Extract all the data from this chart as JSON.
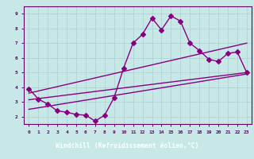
{
  "xlabel": "Windchill (Refroidissement éolien,°C)",
  "xlim": [
    -0.5,
    23.5
  ],
  "ylim": [
    1.5,
    9.5
  ],
  "xticks": [
    0,
    1,
    2,
    3,
    4,
    5,
    6,
    7,
    8,
    9,
    10,
    11,
    12,
    13,
    14,
    15,
    16,
    17,
    18,
    19,
    20,
    21,
    22,
    23
  ],
  "yticks": [
    2,
    3,
    4,
    5,
    6,
    7,
    8,
    9
  ],
  "bg_color": "#c8e8e8",
  "line_color": "#880080",
  "line1_x": [
    0,
    1,
    2,
    3,
    4,
    5,
    6,
    7,
    8,
    9,
    10,
    11,
    12,
    13,
    14,
    15,
    16,
    17,
    18,
    19,
    20,
    21,
    22,
    23
  ],
  "line1_y": [
    3.9,
    3.2,
    2.85,
    2.4,
    2.3,
    2.15,
    2.1,
    1.7,
    2.1,
    3.3,
    5.3,
    7.0,
    7.6,
    8.7,
    7.9,
    8.85,
    8.5,
    7.0,
    6.5,
    5.9,
    5.75,
    6.3,
    6.4,
    5.0
  ],
  "trend1_x": [
    0,
    23
  ],
  "trend1_y": [
    3.15,
    5.0
  ],
  "trend2_x": [
    0,
    23
  ],
  "trend2_y": [
    3.6,
    7.0
  ],
  "trend3_x": [
    0,
    23
  ],
  "trend3_y": [
    2.5,
    4.9
  ],
  "grid_color": "#aad0d0",
  "tick_color": "#660066",
  "label_bg": "#660066",
  "label_fg": "#ffffff",
  "marker_size": 3,
  "line_width": 1.0
}
